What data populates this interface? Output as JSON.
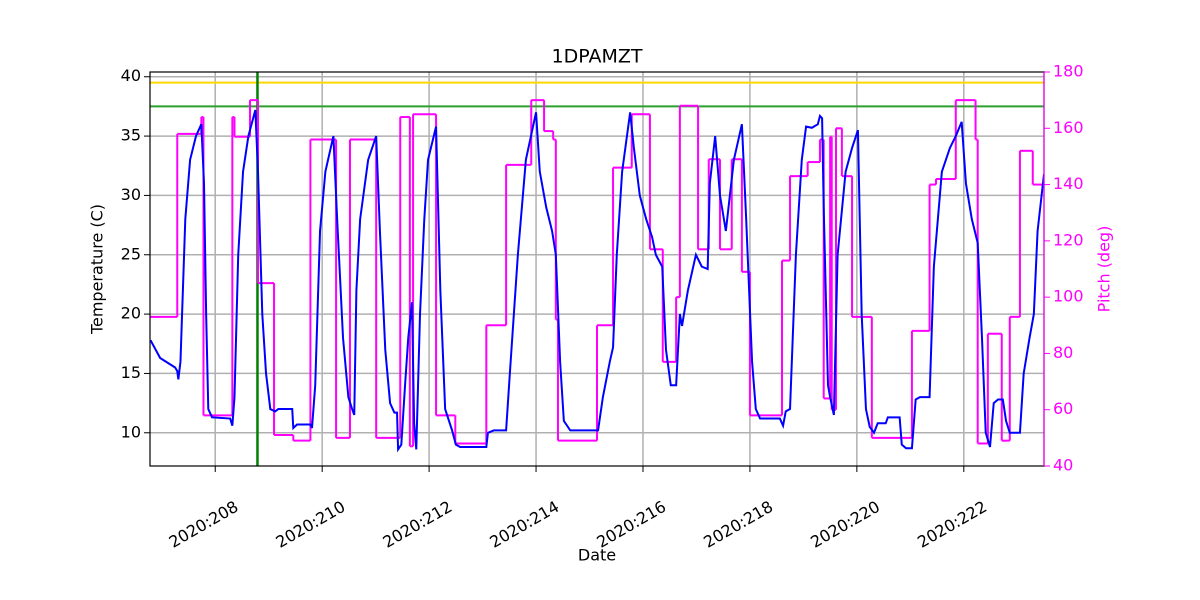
{
  "chart_data": {
    "type": "line",
    "title": "1DPAMZT",
    "x_label": "Date",
    "y_label": "Temperature (C)",
    "y2_label": "Pitch (deg)",
    "y2_color": "#ff00ff",
    "xlim": [
      206.78,
      223.5
    ],
    "ylim": [
      7.2,
      40.4
    ],
    "y2lim": [
      40,
      180
    ],
    "xticks": [
      {
        "value": 208,
        "label": "2020:208"
      },
      {
        "value": 210,
        "label": "2020:210"
      },
      {
        "value": 212,
        "label": "2020:212"
      },
      {
        "value": 214,
        "label": "2020:214"
      },
      {
        "value": 216,
        "label": "2020:216"
      },
      {
        "value": 218,
        "label": "2020:218"
      },
      {
        "value": 220,
        "label": "2020:220"
      },
      {
        "value": 222,
        "label": "2020:222"
      }
    ],
    "yticks": [
      10,
      15,
      20,
      25,
      30,
      35,
      40
    ],
    "y2ticks": [
      40,
      60,
      80,
      100,
      120,
      140,
      160,
      180
    ],
    "grid": true,
    "hlines": [
      {
        "value": 39.5,
        "color": "#ffd700"
      },
      {
        "value": 37.5,
        "color": "#2ca02c"
      }
    ],
    "vlines": [
      {
        "value": 208.79,
        "color": "#008000"
      }
    ],
    "series": [
      {
        "color": "#0000ff",
        "step": false,
        "x": [
          206.79,
          206.97,
          207.25,
          207.29,
          207.31,
          207.35,
          207.44,
          207.53,
          207.64,
          207.74,
          207.79,
          207.83,
          207.87,
          207.94,
          208.28,
          208.32,
          208.36,
          208.43,
          208.52,
          208.62,
          208.75,
          208.8,
          208.88,
          208.95,
          209.03,
          209.12,
          209.18,
          209.44,
          209.46,
          209.53,
          209.78,
          209.81,
          209.87,
          209.96,
          210.06,
          210.21,
          210.28,
          210.39,
          210.49,
          210.56,
          210.6,
          210.64,
          210.71,
          210.86,
          211.01,
          211.08,
          211.18,
          211.27,
          211.35,
          211.4,
          211.42,
          211.48,
          211.55,
          211.61,
          211.68,
          211.72,
          211.76,
          211.83,
          211.91,
          211.98,
          212.13,
          212.21,
          212.3,
          212.43,
          212.5,
          212.58,
          213.07,
          213.1,
          213.21,
          213.44,
          213.51,
          213.66,
          213.81,
          214.0,
          214.07,
          214.19,
          214.3,
          214.37,
          214.45,
          214.52,
          214.64,
          215.16,
          215.25,
          215.38,
          215.44,
          215.51,
          215.61,
          215.76,
          215.83,
          215.94,
          216.06,
          216.17,
          216.24,
          216.36,
          216.43,
          216.52,
          216.62,
          216.69,
          216.73,
          216.84,
          216.99,
          217.1,
          217.21,
          217.25,
          217.35,
          217.44,
          217.55,
          217.7,
          217.85,
          217.93,
          218.04,
          218.11,
          218.19,
          218.56,
          218.62,
          218.67,
          218.75,
          218.86,
          218.97,
          219.05,
          219.16,
          219.27,
          219.31,
          219.35,
          219.38,
          219.46,
          219.5,
          219.57,
          219.64,
          219.79,
          219.91,
          220.02,
          220.09,
          220.17,
          220.24,
          220.32,
          220.39,
          220.54,
          220.58,
          220.8,
          220.84,
          220.92,
          221.03,
          221.1,
          221.18,
          221.36,
          221.44,
          221.59,
          221.74,
          221.85,
          221.96,
          222.04,
          222.15,
          222.26,
          222.34,
          222.41,
          222.49,
          222.56,
          222.64,
          222.73,
          222.79,
          222.86,
          223.05,
          223.12,
          223.23,
          223.31,
          223.38,
          223.5
        ],
        "values": [
          17.8,
          16.3,
          15.5,
          15.2,
          14.5,
          16,
          28,
          33,
          35,
          36,
          31,
          20,
          12,
          11.3,
          11.2,
          10.6,
          13,
          25,
          32,
          35,
          37.2,
          32,
          20,
          15,
          12,
          11.8,
          12,
          12,
          10.4,
          10.7,
          10.7,
          10.4,
          14,
          27,
          32,
          35,
          28,
          18,
          13,
          12,
          11.5,
          22,
          28,
          33,
          35,
          27,
          17,
          12.5,
          11.7,
          11.7,
          8.6,
          9,
          14,
          18,
          21,
          10.8,
          8.6,
          20,
          28,
          33,
          35.8,
          22,
          12,
          10.2,
          9,
          8.8,
          8.8,
          10,
          10.2,
          10.2,
          15,
          25,
          33,
          37,
          32,
          29,
          27,
          25,
          16,
          11,
          10.2,
          10.2,
          13,
          16,
          17.2,
          25,
          32,
          37,
          34,
          30,
          28,
          26.5,
          25,
          24,
          17,
          14,
          14,
          20,
          19,
          22,
          25,
          24,
          23.8,
          31,
          35,
          30,
          27,
          33,
          36,
          28,
          16,
          12,
          11.2,
          11.2,
          10.6,
          11.8,
          12,
          25,
          33,
          35.8,
          35.7,
          36,
          36.7,
          36.5,
          29,
          14,
          13,
          11.5,
          25,
          32,
          34,
          35.5,
          20,
          12,
          10.5,
          10,
          10.8,
          10.8,
          11.3,
          11.3,
          9,
          8.7,
          8.7,
          12.8,
          13,
          13,
          24,
          32,
          34,
          35,
          36.2,
          31,
          28,
          26,
          18,
          10,
          8.8,
          12.5,
          12.8,
          12.8,
          11,
          10,
          10,
          15,
          18,
          20,
          27,
          31.8
        ]
      },
      {
        "color": "#ff00ff",
        "axis": "y2",
        "step": true,
        "x": [
          206.79,
          207.29,
          207.74,
          207.78,
          208.32,
          208.36,
          208.65,
          208.8,
          209.1,
          209.46,
          209.78,
          210.26,
          210.52,
          211.01,
          211.46,
          211.64,
          211.7,
          212.13,
          212.49,
          213.07,
          213.44,
          213.91,
          214.15,
          214.32,
          214.37,
          214.41,
          215.14,
          215.44,
          215.79,
          216.13,
          216.37,
          216.62,
          216.69,
          217.03,
          217.23,
          217.44,
          217.66,
          217.85,
          218.0,
          218.6,
          218.75,
          219.08,
          219.31,
          219.38,
          219.5,
          219.53,
          219.61,
          219.72,
          219.91,
          220.28,
          221.03,
          221.36,
          221.48,
          221.85,
          222.22,
          222.26,
          222.45,
          222.71,
          222.86,
          223.05,
          223.29
        ],
        "values": [
          93,
          158,
          164,
          58,
          164,
          157,
          170,
          105,
          51,
          49,
          156,
          50,
          156,
          50,
          164,
          47,
          165,
          58,
          48,
          90,
          147,
          170,
          159,
          156,
          92,
          49,
          90,
          146,
          165,
          117,
          77,
          100,
          168,
          117,
          149,
          117,
          149,
          109,
          58,
          113,
          143,
          148,
          156,
          64,
          157,
          60,
          160,
          143,
          93,
          50,
          88,
          140,
          142,
          170,
          156,
          48,
          87,
          49,
          93,
          152,
          140
        ]
      }
    ]
  }
}
